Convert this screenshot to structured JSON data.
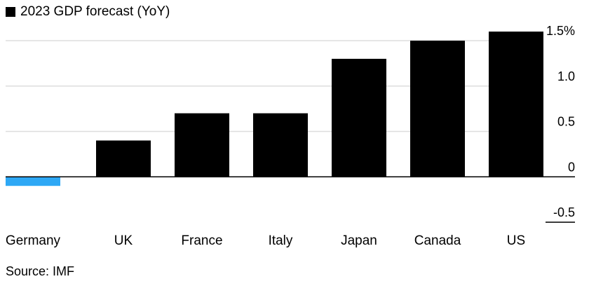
{
  "chart_data": {
    "type": "bar",
    "legend": "2023 GDP forecast (YoY)",
    "categories": [
      "Germany",
      "UK",
      "France",
      "Italy",
      "Japan",
      "Canada",
      "US"
    ],
    "series": [
      {
        "name": "2023 GDP forecast (YoY)",
        "values": [
          -0.1,
          0.4,
          0.7,
          0.7,
          1.3,
          1.5,
          1.6
        ]
      }
    ],
    "ylim": [
      -0.5,
      1.5
    ],
    "yticks": [
      {
        "value": 1.5,
        "label": "1.5%"
      },
      {
        "value": 1.0,
        "label": "1.0"
      },
      {
        "value": 0.5,
        "label": "0.5"
      },
      {
        "value": 0,
        "label": "0"
      },
      {
        "value": -0.5,
        "label": "-0.5"
      }
    ],
    "y_axis_side": "right",
    "grid": true,
    "colors": {
      "positive": "#000000",
      "negative": "#2ea8f5",
      "grid": "#dddddd",
      "zero_line": "#000000"
    },
    "source": "Source: IMF"
  }
}
